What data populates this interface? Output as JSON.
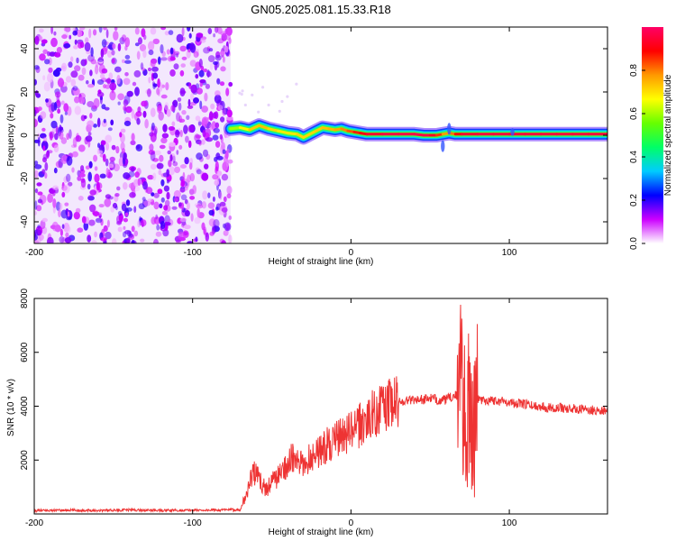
{
  "chart_data": [
    {
      "type": "heatmap",
      "title": "GN05.2025.081.15.33.R18",
      "xlabel": "Height of straight line (km)",
      "ylabel": "Frequency (Hz)",
      "xlim": [
        -200,
        162
      ],
      "ylim": [
        -50,
        50
      ],
      "xticks": [
        "-200",
        "-100",
        "0",
        "100"
      ],
      "yticks": [
        "40",
        "20",
        "0",
        "-20",
        "-40"
      ],
      "noise_region_x": [
        -200,
        -76
      ],
      "ridge": {
        "x": [
          -76,
          -70,
          -64,
          -58,
          -52,
          -46,
          -40,
          -34,
          -30,
          -26,
          -22,
          -18,
          -14,
          -10,
          -6,
          -2,
          2,
          6,
          10,
          20,
          30,
          40,
          46,
          50,
          54,
          58,
          62,
          66,
          70,
          80,
          90,
          100,
          110,
          120,
          130,
          140,
          150,
          162
        ],
        "y": [
          3,
          3.5,
          2.5,
          4.5,
          3,
          2,
          1,
          0.5,
          -1,
          0.5,
          2,
          3.5,
          3,
          2.5,
          3,
          2,
          1.5,
          1,
          0.5,
          0.5,
          0.5,
          0.5,
          0,
          0,
          0,
          0.5,
          1,
          0.5,
          0.5,
          0.5,
          0.5,
          0.5,
          0.5,
          0.5,
          0.5,
          0.5,
          0.5,
          0.5
        ],
        "amplitude": [
          0.55,
          0.65,
          0.7,
          0.75,
          0.72,
          0.7,
          0.68,
          0.7,
          0.72,
          0.7,
          0.72,
          0.72,
          0.75,
          0.75,
          0.78,
          0.8,
          0.85,
          0.88,
          0.92,
          0.95,
          0.96,
          0.96,
          0.97,
          0.95,
          0.9,
          0.8,
          0.75,
          0.85,
          0.92,
          0.95,
          0.95,
          0.95,
          0.95,
          0.95,
          0.95,
          0.95,
          0.95,
          0.95
        ]
      },
      "colorbar": {
        "label": "Normalized spectral amplitude",
        "range": [
          0,
          1
        ],
        "ticks": [
          "0.0",
          "0.2",
          "0.4",
          "0.6",
          "0.8"
        ],
        "colors": [
          "#ffffff",
          "#cc00ff",
          "#0000ff",
          "#00ccff",
          "#00ff66",
          "#66ff00",
          "#ffff00",
          "#ff9900",
          "#ff0000",
          "#ff0066"
        ]
      }
    },
    {
      "type": "line",
      "xlabel": "Height of straight line (km)",
      "ylabel": "SNR (10 * v/v)",
      "xlim": [
        -200,
        162
      ],
      "ylim": [
        0,
        8000
      ],
      "xticks": [
        "-200",
        "-100",
        "0",
        "100"
      ],
      "yticks": [
        "8000",
        "6000",
        "4000",
        "2000"
      ],
      "color": "#ee3333",
      "series": [
        {
          "x": [
            -200,
            -180,
            -160,
            -140,
            -120,
            -100,
            -90,
            -80,
            -70,
            -66,
            -62,
            -58,
            -54,
            -50,
            -46,
            -42,
            -38,
            -34,
            -30,
            -26,
            -22,
            -18,
            -14,
            -10,
            -6,
            -2,
            2,
            6,
            10,
            14,
            18,
            22,
            26,
            30,
            34,
            38,
            42,
            46,
            50,
            54,
            58,
            62,
            64,
            66,
            68,
            70,
            72,
            74,
            76,
            78,
            80,
            84,
            88,
            92,
            96,
            100,
            104,
            108,
            112,
            116,
            120,
            126,
            132,
            138,
            144,
            150,
            156,
            162
          ],
          "y": [
            120,
            140,
            130,
            150,
            130,
            140,
            140,
            150,
            160,
            700,
            1600,
            1300,
            900,
            1200,
            1400,
            1700,
            2100,
            1900,
            1800,
            2100,
            2300,
            2400,
            2600,
            2700,
            2900,
            3000,
            3100,
            3300,
            3500,
            3700,
            3900,
            4000,
            4100,
            4150,
            4200,
            4250,
            4250,
            4250,
            4300,
            4250,
            4200,
            4300,
            4350,
            4400,
            4300,
            4200,
            3800,
            4500,
            3800,
            4100,
            4300,
            4200,
            4250,
            4200,
            4200,
            4150,
            4100,
            4100,
            4050,
            4000,
            4000,
            3950,
            3950,
            3900,
            3900,
            3850,
            3850,
            3850
          ]
        }
      ],
      "spikes_x": [
        64,
        80
      ]
    }
  ]
}
